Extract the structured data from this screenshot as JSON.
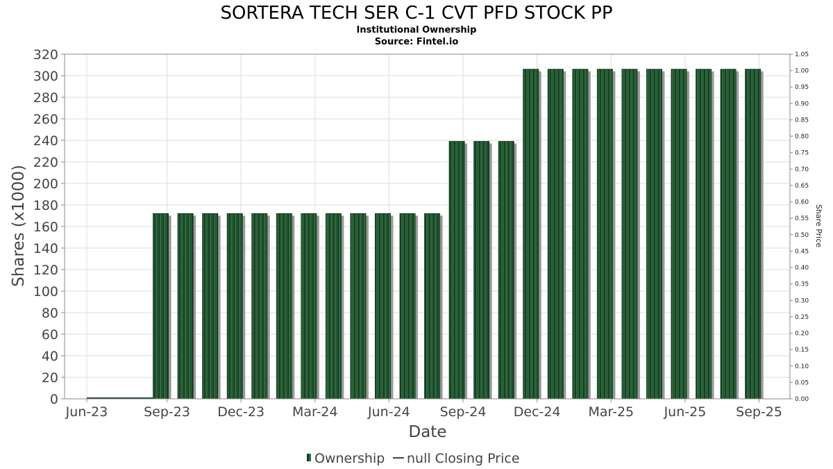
{
  "chart_data": {
    "type": "bar",
    "title": "SORTERA TECH SER C-1 CVT PFD STOCK PP",
    "subtitle_lines": [
      "Institutional Ownership",
      "Source: Fintel.io"
    ],
    "xlabel": "Date",
    "ylabel": "Shares (x1000)",
    "y2label": "Share Price",
    "ylim": [
      0,
      320
    ],
    "y2lim": [
      0,
      1.05
    ],
    "yticks": [
      "0",
      "20",
      "40",
      "60",
      "80",
      "100",
      "120",
      "140",
      "160",
      "180",
      "200",
      "220",
      "240",
      "260",
      "280",
      "300",
      "320"
    ],
    "y2ticks": [
      "0.00",
      "0.05",
      "0.10",
      "0.15",
      "0.20",
      "0.25",
      "0.30",
      "0.35",
      "0.40",
      "0.45",
      "0.50",
      "0.55",
      "0.60",
      "0.65",
      "0.70",
      "0.75",
      "0.80",
      "0.85",
      "0.90",
      "0.95",
      "1.00",
      "1.05"
    ],
    "x_tick_labels": [
      "Jun-23",
      "Sep-23",
      "Dec-23",
      "Mar-24",
      "Jun-24",
      "Sep-24",
      "Dec-24",
      "Mar-25",
      "Jun-25",
      "Sep-25"
    ],
    "x_tick_positions": [
      0,
      3.25,
      6.25,
      9.25,
      12.25,
      15.25,
      18.25,
      21.25,
      24.25,
      27.25
    ],
    "x_domain": [
      -0.9,
      28.5
    ],
    "bars": [
      {
        "x": 3,
        "value": 172
      },
      {
        "x": 4,
        "value": 172
      },
      {
        "x": 5,
        "value": 172
      },
      {
        "x": 6,
        "value": 172
      },
      {
        "x": 7,
        "value": 172
      },
      {
        "x": 8,
        "value": 172
      },
      {
        "x": 9,
        "value": 172
      },
      {
        "x": 10,
        "value": 172
      },
      {
        "x": 11,
        "value": 172
      },
      {
        "x": 12,
        "value": 172
      },
      {
        "x": 13,
        "value": 172
      },
      {
        "x": 14,
        "value": 172
      },
      {
        "x": 15,
        "value": 239
      },
      {
        "x": 16,
        "value": 239
      },
      {
        "x": 17,
        "value": 239
      },
      {
        "x": 18,
        "value": 306
      },
      {
        "x": 19,
        "value": 306
      },
      {
        "x": 20,
        "value": 306
      },
      {
        "x": 21,
        "value": 306
      },
      {
        "x": 22,
        "value": 306
      },
      {
        "x": 23,
        "value": 306
      },
      {
        "x": 24,
        "value": 306
      },
      {
        "x": 25,
        "value": 306
      },
      {
        "x": 26,
        "value": 306
      },
      {
        "x": 27,
        "value": 306
      }
    ],
    "zero_line": {
      "from": 0,
      "to": 3,
      "value": 0
    },
    "legend": [
      {
        "name": "Ownership",
        "symbol": "bar"
      },
      {
        "name": "null Closing Price",
        "symbol": "line"
      }
    ],
    "legend_placement": "bottom-center",
    "grid": true,
    "colors": {
      "bar_dark": "#173d22",
      "bar_mid": "#2e6b3e",
      "bar_shadow": "#9a9a9a",
      "grid": "#dddddd",
      "frame": "#888888"
    }
  }
}
